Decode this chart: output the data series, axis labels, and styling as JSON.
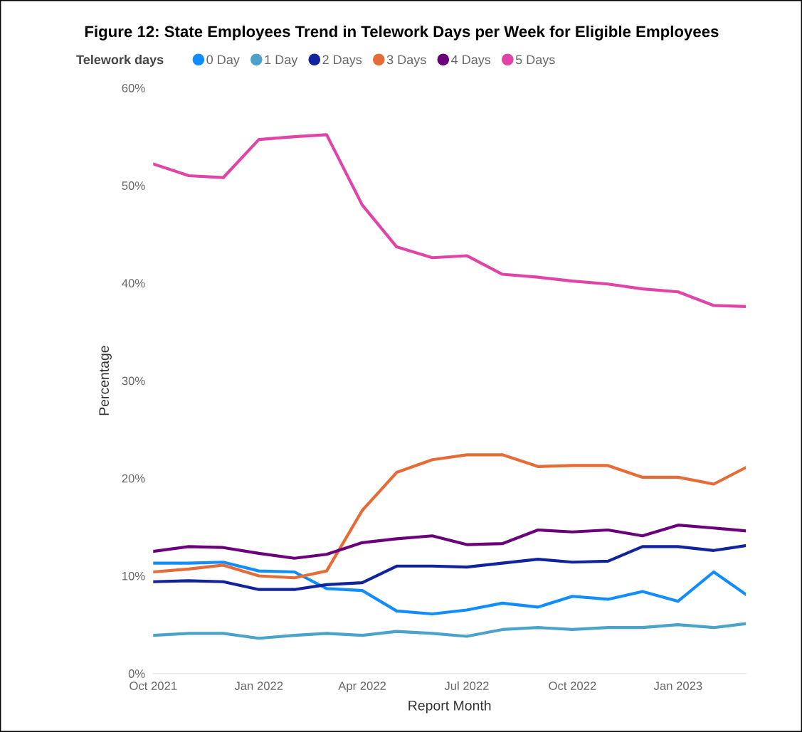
{
  "chart_data": {
    "type": "line",
    "title": "Figure 12: State Employees Trend in Telework Days per Week for Eligible Employees",
    "xlabel": "Report Month",
    "ylabel": "Percentage",
    "legend_title": "Telework days",
    "legend": "top left",
    "grid": false,
    "marker": "none",
    "line_style": "solid",
    "x": [
      "2021-10",
      "2021-11",
      "2021-12",
      "2022-01",
      "2022-02",
      "2022-03",
      "2022-04",
      "2022-05",
      "2022-06",
      "2022-07",
      "2022-08",
      "2022-09",
      "2022-10",
      "2022-11",
      "2022-12",
      "2023-01",
      "2023-02",
      "2023-03"
    ],
    "xticks": [
      {
        "value": "2021-10",
        "label": "Oct 2021"
      },
      {
        "value": "2022-01",
        "label": "Jan 2022"
      },
      {
        "value": "2022-04",
        "label": "Apr 2022"
      },
      {
        "value": "2022-07",
        "label": "Jul 2022"
      },
      {
        "value": "2022-10",
        "label": "Oct 2022"
      },
      {
        "value": "2023-01",
        "label": "Jan 2023"
      }
    ],
    "xlim": [
      "2021-10",
      "2023-03"
    ],
    "ylim": [
      0,
      60
    ],
    "yticks": [
      {
        "value": 0,
        "label": "0%"
      },
      {
        "value": 10,
        "label": "10%"
      },
      {
        "value": 20,
        "label": "20%"
      },
      {
        "value": 30,
        "label": "30%"
      },
      {
        "value": 40,
        "label": "40%"
      },
      {
        "value": 50,
        "label": "50%"
      },
      {
        "value": 60,
        "label": "60%"
      }
    ],
    "series": [
      {
        "name": "0 Day",
        "color": "#118dff",
        "values": [
          11.3,
          11.3,
          11.4,
          10.5,
          10.4,
          8.7,
          8.5,
          6.4,
          6.1,
          6.5,
          7.2,
          6.8,
          7.9,
          7.6,
          8.4,
          7.4,
          10.4,
          8.1
        ]
      },
      {
        "name": "1 Day",
        "color": "#4ba3c9",
        "values": [
          3.9,
          4.1,
          4.1,
          3.6,
          3.9,
          4.1,
          3.9,
          4.3,
          4.1,
          3.8,
          4.5,
          4.7,
          4.5,
          4.7,
          4.7,
          5.0,
          4.7,
          5.1
        ]
      },
      {
        "name": "2 Days",
        "color": "#12239e",
        "values": [
          9.4,
          9.5,
          9.4,
          8.6,
          8.6,
          9.1,
          9.3,
          11.0,
          11.0,
          10.9,
          11.3,
          11.7,
          11.4,
          11.5,
          13.0,
          13.0,
          12.6,
          13.1
        ]
      },
      {
        "name": "3 Days",
        "color": "#e66c37",
        "values": [
          10.4,
          10.7,
          11.1,
          10.0,
          9.8,
          10.5,
          16.7,
          20.6,
          21.9,
          22.4,
          22.4,
          21.2,
          21.3,
          21.3,
          20.1,
          20.1,
          19.4,
          21.1
        ]
      },
      {
        "name": "4 Days",
        "color": "#6b007b",
        "values": [
          12.5,
          13.0,
          12.9,
          12.3,
          11.8,
          12.2,
          13.4,
          13.8,
          14.1,
          13.2,
          13.3,
          14.7,
          14.5,
          14.7,
          14.1,
          15.2,
          14.9,
          14.6
        ]
      },
      {
        "name": "5 Days",
        "color": "#e044a7",
        "values": [
          52.2,
          51.0,
          50.8,
          54.7,
          55.0,
          55.2,
          48.0,
          43.7,
          42.6,
          42.8,
          40.9,
          40.6,
          40.2,
          39.9,
          39.4,
          39.1,
          37.7,
          37.6
        ]
      }
    ]
  }
}
